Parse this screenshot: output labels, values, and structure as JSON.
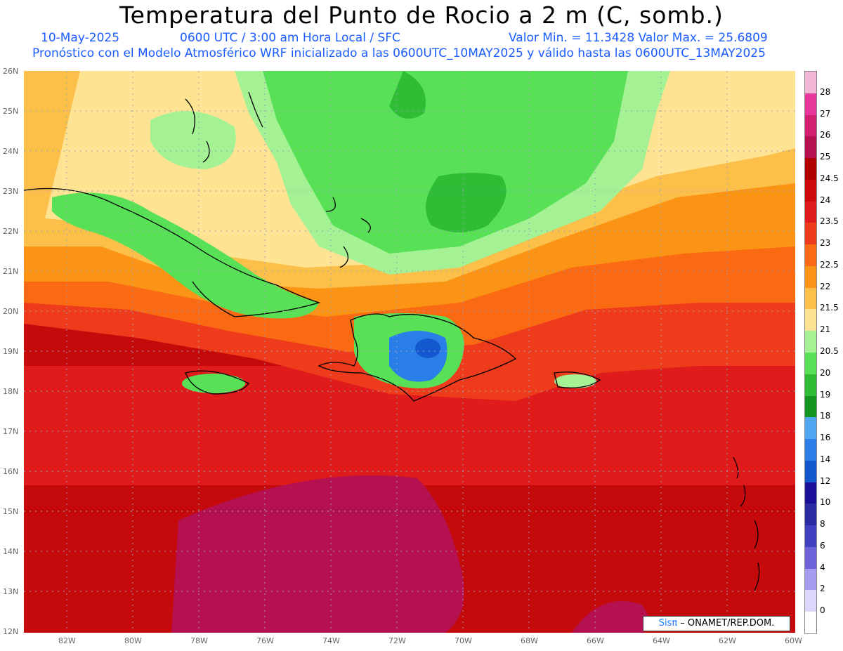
{
  "header": {
    "title": "Temperatura del Punto de Rocio a 2 m (C, somb.)",
    "date": "10-May-2025",
    "time": "0600 UTC / 3:00 am Hora Local / SFC",
    "minmax": "Valor Min. = 11.3428  Valor Max. = 25.6809",
    "model": "Pronóstico con el Modelo Atmosférico WRF inicializado a las 0600UTC_10MAY2025 y válido hasta las  0600UTC_13MAY2025"
  },
  "axes": {
    "lat_labels": [
      "26N",
      "25N",
      "24N",
      "23N",
      "22N",
      "21N",
      "20N",
      "19N",
      "18N",
      "17N",
      "16N",
      "15N",
      "14N",
      "13N",
      "12N"
    ],
    "lon_labels": [
      "82W",
      "80W",
      "78W",
      "76W",
      "74W",
      "72W",
      "70W",
      "68W",
      "66W",
      "64W",
      "62W",
      "60W"
    ]
  },
  "colorbar": {
    "labels": [
      "28",
      "27",
      "26",
      "25",
      "24.5",
      "24",
      "23.5",
      "23",
      "22.5",
      "22",
      "21.5",
      "21",
      "20.5",
      "20",
      "19",
      "18",
      "16",
      "14",
      "12",
      "10",
      "8",
      "6",
      "4",
      "2",
      "0"
    ],
    "colors": [
      "#f4b6d7",
      "#e8369c",
      "#d0206f",
      "#b5104f",
      "#b00000",
      "#cc0a0a",
      "#e01b1b",
      "#ee3b1b",
      "#fa6a12",
      "#fb9315",
      "#fbbf4a",
      "#fde392",
      "#a4f294",
      "#58e156",
      "#2ebd34",
      "#12961e",
      "#4fa6f2",
      "#2a7ee8",
      "#1458d0",
      "#1a109a",
      "#2a2aa4",
      "#4040c0",
      "#6e62db",
      "#a69cf1",
      "#dcd8fb",
      "#ffffff"
    ]
  },
  "credit": {
    "brand": "Sisπ",
    "org": " – ONAMET/REP.DOM."
  }
}
